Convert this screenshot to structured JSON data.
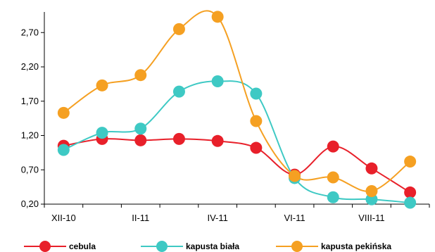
{
  "chart_data": {
    "type": "line",
    "title": "",
    "xlabel": "",
    "ylabel": "",
    "ylim": [
      0.2,
      3.0
    ],
    "yticks": [
      "0,20",
      "0,70",
      "1,20",
      "1,70",
      "2,20",
      "2,70"
    ],
    "ytick_values": [
      0.2,
      0.7,
      1.2,
      1.7,
      2.2,
      2.7
    ],
    "categories": [
      "XII-10",
      "I-11",
      "II-11",
      "III-11",
      "IV-11",
      "V-11",
      "VI-11",
      "VII-11",
      "VIII-11",
      "IX-11"
    ],
    "xtick_labels": [
      "XII-10",
      "",
      "II-11",
      "",
      "IV-11",
      "",
      "VI-11",
      "",
      "VIII-11",
      ""
    ],
    "grid": false,
    "legend_position": "bottom",
    "series": [
      {
        "name": "cebula",
        "color": "#e8202a",
        "values": [
          1.05,
          1.15,
          1.13,
          1.15,
          1.12,
          1.02,
          0.63,
          1.04,
          0.72,
          0.37
        ]
      },
      {
        "name": "kapusta biała",
        "color": "#3ec9c4",
        "values": [
          0.99,
          1.24,
          1.3,
          1.84,
          1.99,
          1.81,
          0.58,
          0.3,
          0.27,
          0.22
        ]
      },
      {
        "name": "kapusta pekińska",
        "color": "#f5a022",
        "values": [
          1.53,
          1.93,
          2.08,
          2.75,
          2.93,
          1.41,
          0.61,
          0.59,
          0.39,
          0.82
        ]
      }
    ]
  }
}
